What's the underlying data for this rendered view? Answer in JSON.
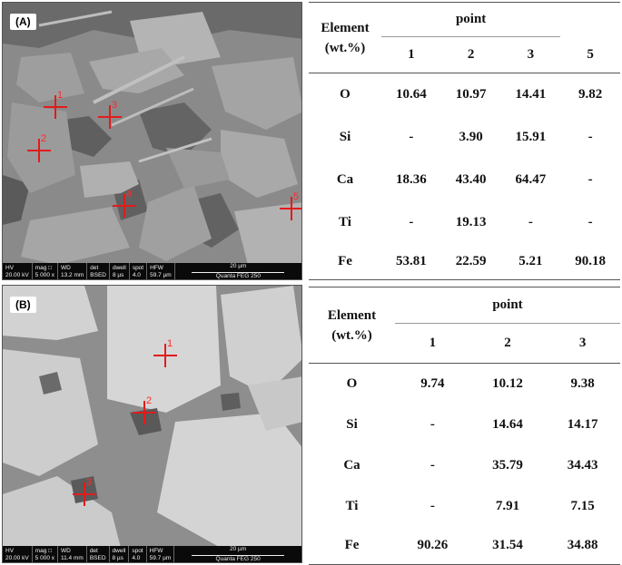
{
  "panels": [
    {
      "label": "(A)",
      "markers": [
        "1",
        "2",
        "3",
        "4",
        "5"
      ],
      "databar": {
        "hv_label": "HV",
        "hv": "20.00 kV",
        "mag_label": "mag □",
        "mag": "5 000 x",
        "wd_label": "WD",
        "wd": "13.2 mm",
        "det_label": "det",
        "det": "BSED",
        "dwell_label": "dwell",
        "dwell": "8 µs",
        "spot_label": "spot",
        "spot": "4.0",
        "hfw_label": "HFW",
        "hfw": "59.7 µm",
        "scale_label": "20 µm",
        "instrument": "Quanta FEG 250"
      },
      "table": {
        "element_header_line1": "Element",
        "element_header_line2": "(wt.%)",
        "group_header": "point",
        "columns": [
          "1",
          "2",
          "3",
          "5"
        ],
        "rows": [
          {
            "element": "O",
            "values": [
              "10.64",
              "10.97",
              "14.41",
              "9.82"
            ]
          },
          {
            "element": "Si",
            "values": [
              "-",
              "3.90",
              "15.91",
              "-"
            ]
          },
          {
            "element": "Ca",
            "values": [
              "18.36",
              "43.40",
              "64.47",
              "-"
            ]
          },
          {
            "element": "Ti",
            "values": [
              "-",
              "19.13",
              "-",
              "-"
            ]
          },
          {
            "element": "Fe",
            "values": [
              "53.81",
              "22.59",
              "5.21",
              "90.18"
            ]
          }
        ]
      }
    },
    {
      "label": "(B)",
      "markers": [
        "1",
        "2",
        "3"
      ],
      "databar": {
        "hv_label": "HV",
        "hv": "20.00 kV",
        "mag_label": "mag □",
        "mag": "5 000 x",
        "wd_label": "WD",
        "wd": "11.4 mm",
        "det_label": "det",
        "det": "BSED",
        "dwell_label": "dwell",
        "dwell": "8 µs",
        "spot_label": "spot",
        "spot": "4.0",
        "hfw_label": "HFW",
        "hfw": "59.7 µm",
        "scale_label": "20 µm",
        "instrument": "Quanta FEG 250"
      },
      "table": {
        "element_header_line1": "Element",
        "element_header_line2": "(wt.%)",
        "group_header": "point",
        "columns": [
          "1",
          "2",
          "3"
        ],
        "rows": [
          {
            "element": "O",
            "values": [
              "9.74",
              "10.12",
              "9.38"
            ]
          },
          {
            "element": "Si",
            "values": [
              "-",
              "14.64",
              "14.17"
            ]
          },
          {
            "element": "Ca",
            "values": [
              "-",
              "35.79",
              "34.43"
            ]
          },
          {
            "element": "Ti",
            "values": [
              "-",
              "7.91",
              "7.15"
            ]
          },
          {
            "element": "Fe",
            "values": [
              "90.26",
              "31.54",
              "34.88"
            ]
          }
        ]
      }
    }
  ]
}
